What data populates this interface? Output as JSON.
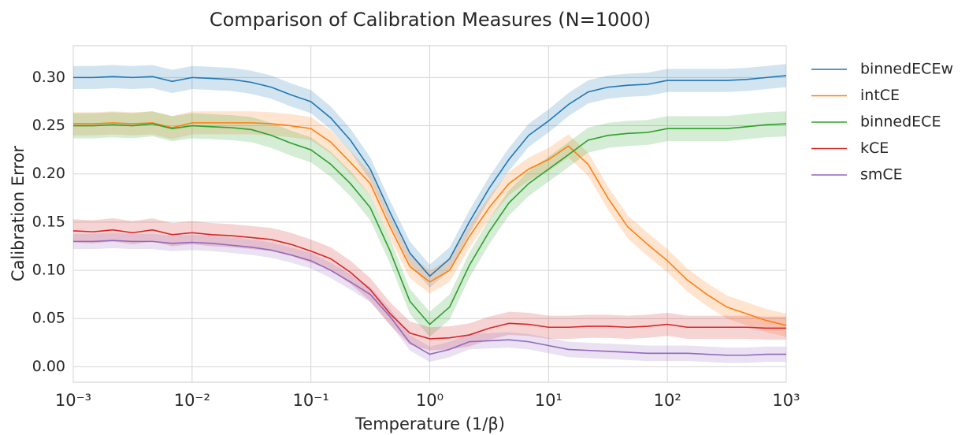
{
  "chart_data": {
    "type": "line",
    "title": "Comparison of Calibration Measures (N=1000)",
    "xlabel": "Temperature (1/β)",
    "ylabel": "Calibration Error",
    "xscale": "log",
    "grid": true,
    "legend": "outside right",
    "x": [
      0.001,
      0.00147,
      0.00215,
      0.00316,
      0.00464,
      0.0068,
      0.01,
      0.0147,
      0.0215,
      0.0316,
      0.0464,
      0.068,
      0.1,
      0.147,
      0.215,
      0.316,
      0.464,
      0.68,
      1,
      1.47,
      2.15,
      3.16,
      4.64,
      6.8,
      10,
      14.7,
      21.5,
      31.6,
      46.4,
      68,
      100,
      147,
      215,
      316,
      464,
      680,
      1000
    ],
    "series": [
      {
        "name": "binnedECEw",
        "color": "#1f77b4",
        "band": 0.012,
        "values": [
          0.3,
          0.3,
          0.301,
          0.3,
          0.301,
          0.296,
          0.3,
          0.299,
          0.298,
          0.295,
          0.29,
          0.282,
          0.275,
          0.258,
          0.235,
          0.205,
          0.16,
          0.118,
          0.094,
          0.112,
          0.15,
          0.185,
          0.215,
          0.24,
          0.255,
          0.272,
          0.285,
          0.29,
          0.292,
          0.293,
          0.297,
          0.297,
          0.297,
          0.297,
          0.298,
          0.3,
          0.302
        ]
      },
      {
        "name": "intCE",
        "color": "#ff7f0e",
        "band": 0.012,
        "values": [
          0.252,
          0.252,
          0.253,
          0.252,
          0.253,
          0.248,
          0.253,
          0.253,
          0.253,
          0.253,
          0.252,
          0.25,
          0.247,
          0.233,
          0.212,
          0.19,
          0.145,
          0.104,
          0.088,
          0.1,
          0.135,
          0.165,
          0.19,
          0.205,
          0.215,
          0.229,
          0.21,
          0.175,
          0.145,
          0.127,
          0.11,
          0.09,
          0.075,
          0.062,
          0.055,
          0.048,
          0.043
        ]
      },
      {
        "name": "binnedECE",
        "color": "#2ca02c",
        "band": 0.013,
        "values": [
          0.25,
          0.25,
          0.251,
          0.25,
          0.252,
          0.247,
          0.25,
          0.249,
          0.248,
          0.246,
          0.24,
          0.232,
          0.225,
          0.21,
          0.19,
          0.165,
          0.12,
          0.068,
          0.044,
          0.062,
          0.105,
          0.14,
          0.17,
          0.19,
          0.205,
          0.22,
          0.235,
          0.24,
          0.242,
          0.243,
          0.247,
          0.247,
          0.247,
          0.247,
          0.249,
          0.251,
          0.252
        ]
      },
      {
        "name": "kCE",
        "color": "#d62728",
        "band": 0.012,
        "values": [
          0.141,
          0.14,
          0.142,
          0.139,
          0.142,
          0.137,
          0.139,
          0.137,
          0.136,
          0.134,
          0.132,
          0.127,
          0.12,
          0.112,
          0.098,
          0.08,
          0.055,
          0.035,
          0.029,
          0.03,
          0.033,
          0.04,
          0.045,
          0.044,
          0.041,
          0.041,
          0.042,
          0.042,
          0.041,
          0.042,
          0.044,
          0.041,
          0.041,
          0.041,
          0.041,
          0.04,
          0.04
        ]
      },
      {
        "name": "smCE",
        "color": "#9467bd",
        "band": 0.008,
        "values": [
          0.13,
          0.13,
          0.131,
          0.13,
          0.13,
          0.128,
          0.129,
          0.128,
          0.126,
          0.124,
          0.121,
          0.116,
          0.11,
          0.1,
          0.088,
          0.075,
          0.052,
          0.025,
          0.013,
          0.018,
          0.026,
          0.027,
          0.028,
          0.026,
          0.022,
          0.018,
          0.017,
          0.016,
          0.015,
          0.014,
          0.014,
          0.014,
          0.013,
          0.012,
          0.012,
          0.013,
          0.013
        ]
      }
    ],
    "xlim": [
      0.001,
      1000
    ],
    "xticks": [
      {
        "value": 0.001,
        "label": "10⁻³"
      },
      {
        "value": 0.01,
        "label": "10⁻²"
      },
      {
        "value": 0.1,
        "label": "10⁻¹"
      },
      {
        "value": 1,
        "label": "10⁰"
      },
      {
        "value": 10,
        "label": "10¹"
      },
      {
        "value": 100,
        "label": "10²"
      },
      {
        "value": 1000,
        "label": "10³"
      }
    ],
    "ylim": [
      -0.016,
      0.333
    ],
    "yticks": [
      {
        "value": 0,
        "label": "0.00"
      },
      {
        "value": 0.05,
        "label": "0.05"
      },
      {
        "value": 0.1,
        "label": "0.10"
      },
      {
        "value": 0.15,
        "label": "0.15"
      },
      {
        "value": 0.2,
        "label": "0.20"
      },
      {
        "value": 0.25,
        "label": "0.25"
      },
      {
        "value": 0.3,
        "label": "0.30"
      }
    ]
  }
}
